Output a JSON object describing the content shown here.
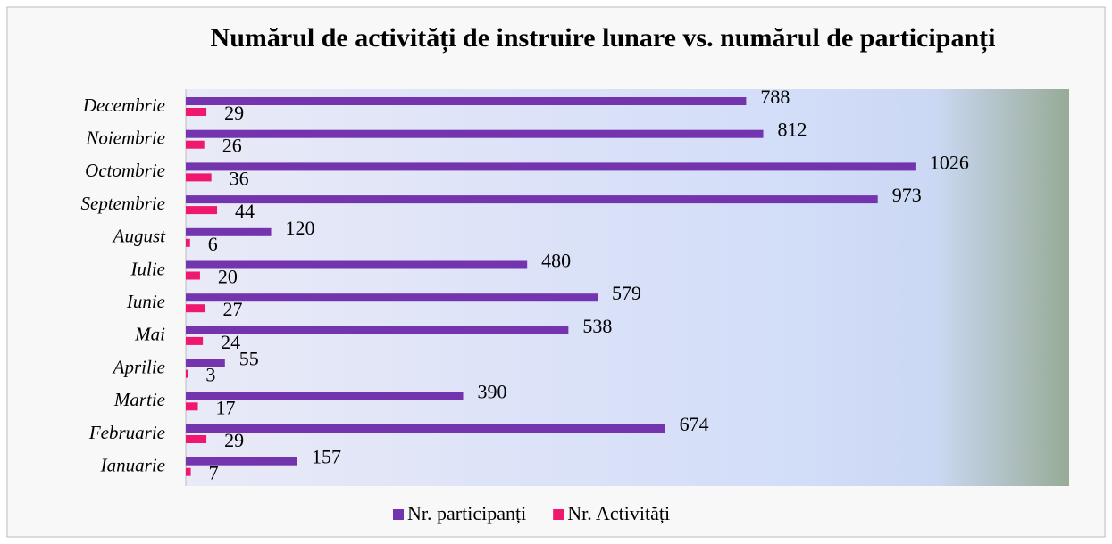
{
  "chart_data": {
    "type": "bar",
    "orientation": "horizontal",
    "title": "Numărul  de activități de instruire lunare vs. numărul de participanți",
    "categories": [
      "Ianuarie",
      "Februarie",
      "Martie",
      "Aprilie",
      "Mai",
      "Iunie",
      "Iulie",
      "August",
      "Septembrie",
      "Octombrie",
      "Noiembrie",
      "Decembrie"
    ],
    "series": [
      {
        "name": "Nr. participanți",
        "color": "#7434ad",
        "values": [
          157,
          674,
          390,
          55,
          538,
          579,
          480,
          120,
          973,
          1026,
          812,
          788
        ]
      },
      {
        "name": "Nr. Activități",
        "color": "#f0176f",
        "values": [
          7,
          29,
          17,
          3,
          24,
          27,
          20,
          6,
          44,
          36,
          26,
          29
        ]
      }
    ],
    "legend": "bottom"
  }
}
